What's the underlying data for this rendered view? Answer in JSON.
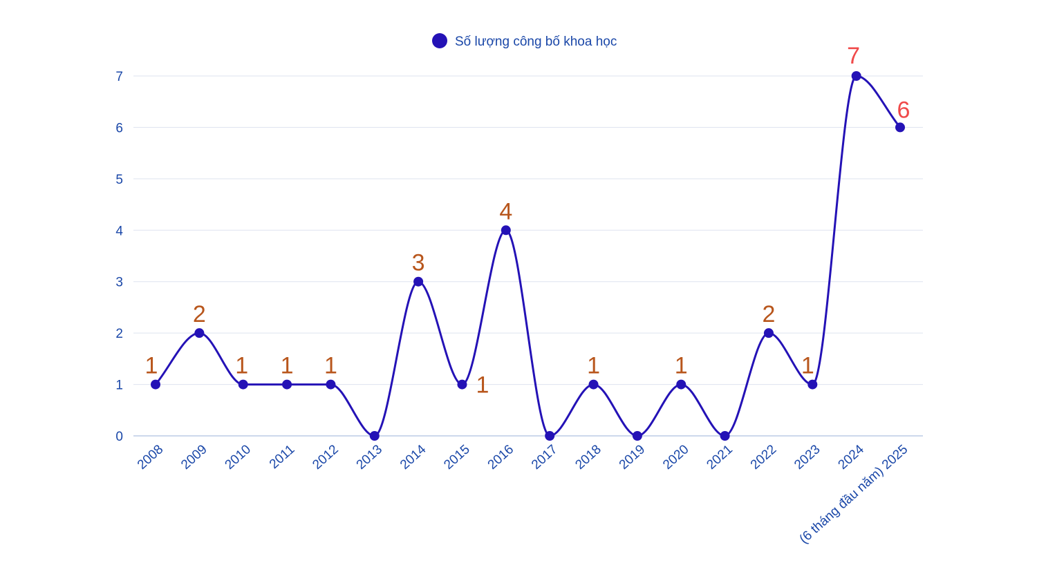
{
  "chart_data": {
    "type": "line",
    "categories": [
      "2008",
      "2009",
      "2010",
      "2011",
      "2012",
      "2013",
      "2014",
      "2015",
      "2016",
      "2017",
      "2018",
      "2019",
      "2020",
      "2021",
      "2022",
      "2023",
      "2024",
      "(6 tháng đầu năm) 2025"
    ],
    "series": [
      {
        "name": "Số lượng công bố khoa học",
        "values": [
          1,
          2,
          1,
          1,
          1,
          0,
          3,
          1,
          4,
          0,
          1,
          0,
          1,
          0,
          2,
          1,
          7,
          6
        ],
        "color": "#2412b6"
      }
    ],
    "data_labels": [
      "1",
      "2",
      "1",
      "1",
      "1",
      "",
      "3",
      "1",
      "4",
      "",
      "1",
      "",
      "1",
      "",
      "2",
      "1",
      "7",
      "6"
    ],
    "label_colors": {
      "normal": "#b8561c",
      "highlight": "#f04a4a"
    },
    "y_ticks": [
      "0",
      "1",
      "2",
      "3",
      "4",
      "5",
      "6",
      "7"
    ],
    "ylim": [
      0,
      7
    ],
    "grid": true,
    "legend_position": "top-center",
    "title": "",
    "xlabel": "",
    "ylabel": ""
  }
}
